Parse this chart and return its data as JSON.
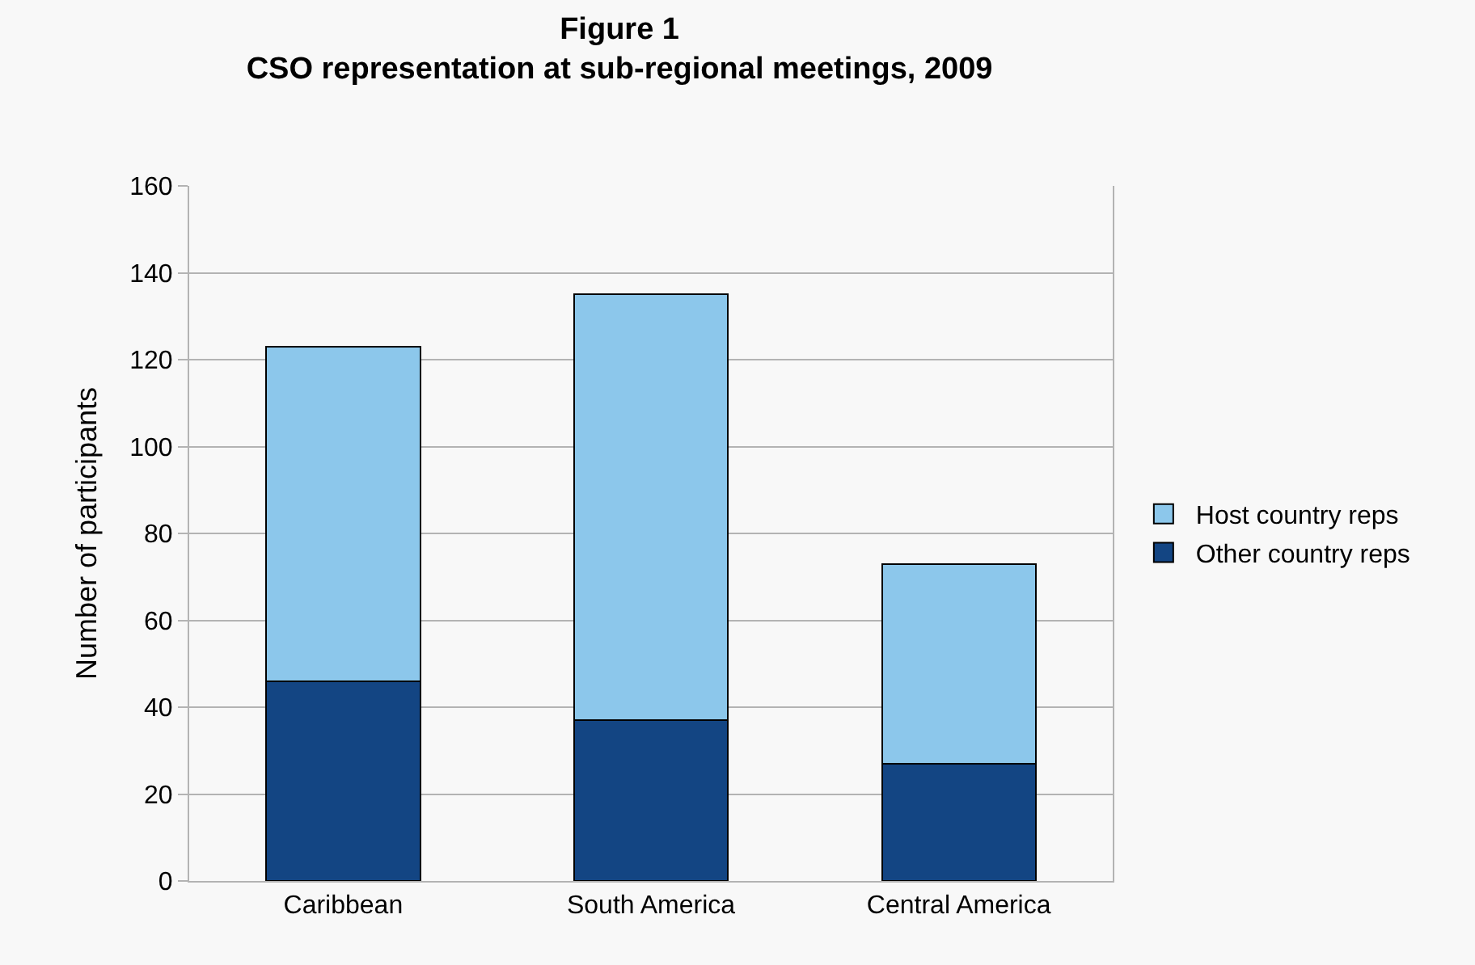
{
  "chart_data": {
    "type": "bar",
    "title": "Figure 1",
    "subtitle": "CSO representation at sub-regional meetings, 2009",
    "ylabel": "Number of participants",
    "categories": [
      "Caribbean",
      "South America",
      "Central America"
    ],
    "stacked": true,
    "series": [
      {
        "name": "Other country reps",
        "color": "#134583",
        "values": [
          46,
          37,
          27
        ]
      },
      {
        "name": "Host country reps",
        "color": "#8cc7eb",
        "values": [
          77,
          98,
          46
        ]
      }
    ],
    "ylim": [
      0,
      160
    ],
    "yticks": [
      0,
      20,
      40,
      60,
      80,
      100,
      120,
      140,
      160
    ],
    "grid": "y",
    "legend": "right"
  }
}
